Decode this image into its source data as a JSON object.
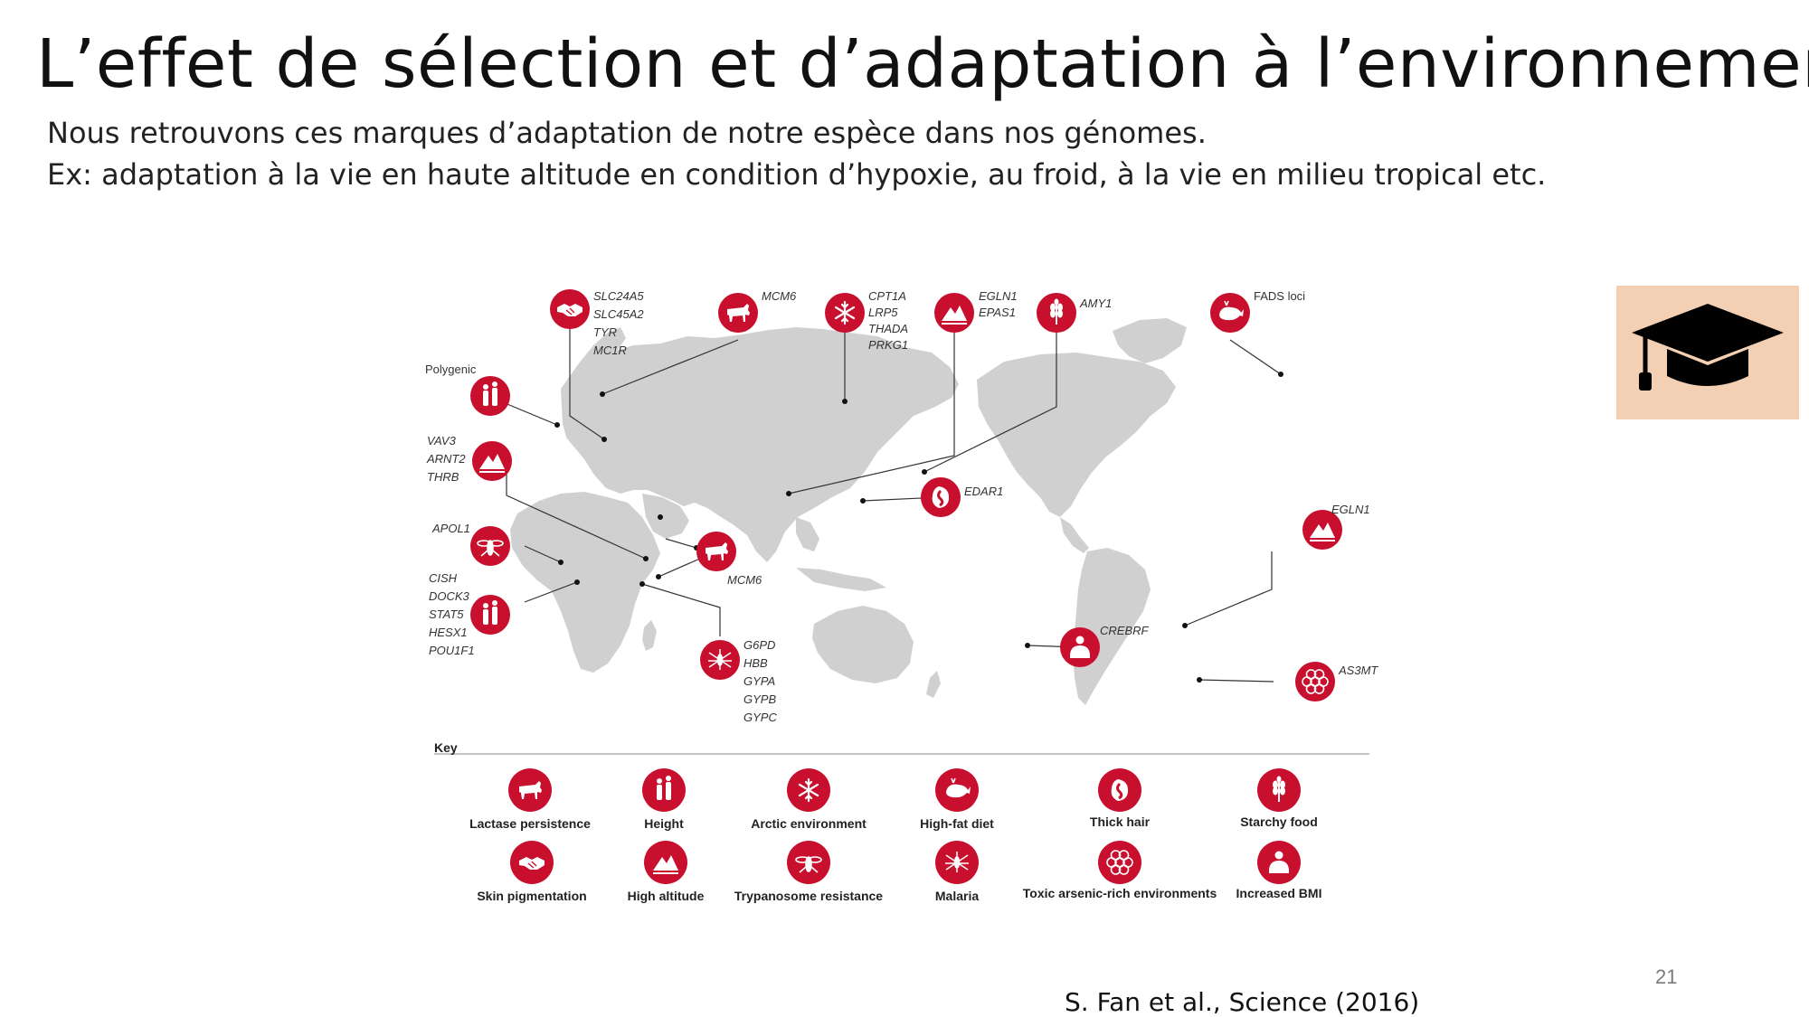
{
  "slide": {
    "title": "L’effet de sélection et d’adaptation à l’environnement",
    "subtitle_line1": "Nous retrouvons ces marques d’adaptation de notre espèce dans nos génomes.",
    "subtitle_line2": "Ex: adaptation à la vie en haute altitude en condition d’hypoxie, au froid, à la vie en milieu tropical etc.",
    "page_number": "21",
    "citation": "S. Fan et al., Science (2016)",
    "badge_icon": "graduation-cap-icon"
  },
  "figure": {
    "accent_color": "#c8102e",
    "land_color": "#d0d0d0",
    "map_labels": {
      "slc": [
        "SLC24A5",
        "SLC45A2",
        "TYR",
        "MC1R"
      ],
      "mcm6_north": [
        "MCM6"
      ],
      "arctic": [
        "CPT1A",
        "LRP5",
        "THADA",
        "PRKG1"
      ],
      "egln1_asia": [
        "EGLN1",
        "EPAS1"
      ],
      "amy1": [
        "AMY1"
      ],
      "fads": [
        "FADS loci"
      ],
      "polygenic": [
        "Polygenic"
      ],
      "vav3": [
        "VAV3",
        "ARNT2",
        "THRB"
      ],
      "edar1": [
        "EDAR1"
      ],
      "apol1": [
        "APOL1"
      ],
      "egln1_andes": [
        "EGLN1"
      ],
      "mcm6_africa": [
        "MCM6"
      ],
      "cish": [
        "CISH",
        "DOCK3",
        "STAT5",
        "HESX1",
        "POU1F1"
      ],
      "crebrf": [
        "CREBRF"
      ],
      "g6pd": [
        "G6PD",
        "HBB",
        "GYPA",
        "GYPB",
        "GYPC"
      ],
      "as3mt": [
        "AS3MT"
      ]
    },
    "key": {
      "title": "Key",
      "items": [
        {
          "label": "Lactase persistence",
          "icon": "cow-icon"
        },
        {
          "label": "Height",
          "icon": "people-icon"
        },
        {
          "label": "Arctic environment",
          "icon": "snowflake-icon"
        },
        {
          "label": "High-fat diet",
          "icon": "whale-icon"
        },
        {
          "label": "Thick hair",
          "icon": "hair-icon"
        },
        {
          "label": "Starchy food",
          "icon": "wheat-icon"
        },
        {
          "label": "Skin pigmentation",
          "icon": "handshake-icon"
        },
        {
          "label": "High altitude",
          "icon": "mountain-icon"
        },
        {
          "label": "Trypanosome resistance",
          "icon": "fly-icon"
        },
        {
          "label": "Malaria",
          "icon": "mosquito-icon"
        },
        {
          "label": "Toxic arsenic-rich environments",
          "icon": "hexagon-grid-icon"
        },
        {
          "label": "Increased BMI",
          "icon": "person-bmi-icon"
        }
      ]
    }
  }
}
